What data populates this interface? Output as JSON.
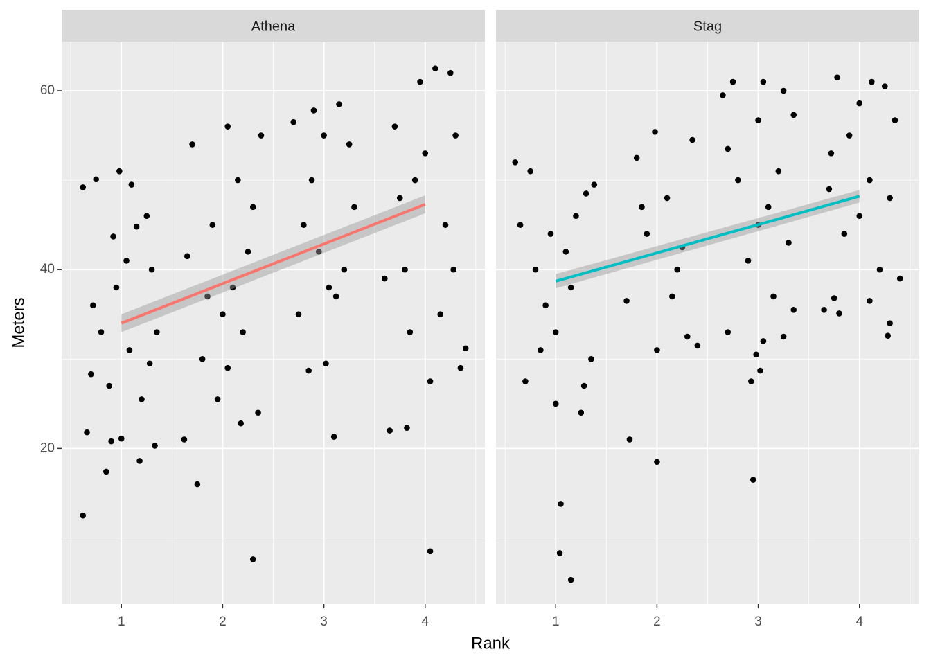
{
  "chart_data": {
    "type": "scatter",
    "xlabel": "Rank",
    "ylabel": "Meters",
    "xlim": [
      0.41,
      4.59
    ],
    "ylim": [
      2.6,
      65.5
    ],
    "xticks": [
      1,
      2,
      3,
      4
    ],
    "yticks": [
      20,
      40,
      60
    ],
    "xminor": [
      0.5,
      1.5,
      2.5,
      3.5,
      4.5
    ],
    "yminor": [
      10,
      30,
      50
    ],
    "grid": true,
    "point_color": "#000000",
    "facets": [
      {
        "title": "Athena",
        "points": [
          [
            0.62,
            12.5
          ],
          [
            0.85,
            17.4
          ],
          [
            1.18,
            18.6
          ],
          [
            0.9,
            20.8
          ],
          [
            1.33,
            20.3
          ],
          [
            0.66,
            21.8
          ],
          [
            1.0,
            21.1
          ],
          [
            0.7,
            28.3
          ],
          [
            0.8,
            33
          ],
          [
            0.95,
            38
          ],
          [
            1.05,
            41
          ],
          [
            1.15,
            44.8
          ],
          [
            1.25,
            46
          ],
          [
            0.62,
            49.2
          ],
          [
            0.75,
            50.1
          ],
          [
            0.98,
            51
          ],
          [
            1.1,
            49.5
          ],
          [
            1.3,
            40
          ],
          [
            1.35,
            33
          ],
          [
            0.88,
            27
          ],
          [
            1.2,
            25.5
          ],
          [
            1.08,
            31
          ],
          [
            0.72,
            36
          ],
          [
            1.28,
            29.5
          ],
          [
            0.92,
            43.7
          ],
          [
            1.75,
            16
          ],
          [
            2.3,
            7.6
          ],
          [
            1.62,
            21
          ],
          [
            2.18,
            22.8
          ],
          [
            2.35,
            24
          ],
          [
            1.7,
            54
          ],
          [
            2.05,
            56
          ],
          [
            2.38,
            55
          ],
          [
            1.9,
            45
          ],
          [
            2.1,
            38
          ],
          [
            2.25,
            42
          ],
          [
            1.8,
            30
          ],
          [
            2.0,
            35
          ],
          [
            1.65,
            41.5
          ],
          [
            2.3,
            47
          ],
          [
            1.95,
            25.5
          ],
          [
            2.2,
            33
          ],
          [
            2.15,
            50
          ],
          [
            1.85,
            37
          ],
          [
            2.05,
            29
          ],
          [
            3.1,
            21.3
          ],
          [
            2.85,
            28.7
          ],
          [
            3.02,
            29.5
          ],
          [
            3.15,
            58.5
          ],
          [
            2.9,
            57.8
          ],
          [
            2.7,
            56.5
          ],
          [
            3.0,
            55
          ],
          [
            2.8,
            45
          ],
          [
            3.2,
            40
          ],
          [
            3.05,
            38
          ],
          [
            2.95,
            42
          ],
          [
            3.3,
            47
          ],
          [
            2.75,
            35
          ],
          [
            3.25,
            54
          ],
          [
            2.88,
            50
          ],
          [
            3.12,
            37
          ],
          [
            4.05,
            8.5
          ],
          [
            3.65,
            22
          ],
          [
            3.82,
            22.3
          ],
          [
            4.05,
            27.5
          ],
          [
            3.95,
            61
          ],
          [
            4.1,
            62.5
          ],
          [
            4.25,
            62
          ],
          [
            4.3,
            55
          ],
          [
            3.7,
            56
          ],
          [
            3.9,
            50
          ],
          [
            4.2,
            45
          ],
          [
            3.8,
            40
          ],
          [
            4.4,
            31.2
          ],
          [
            3.6,
            39
          ],
          [
            4.15,
            35
          ],
          [
            4.35,
            29
          ],
          [
            4.0,
            53
          ],
          [
            3.75,
            48
          ],
          [
            4.28,
            40
          ],
          [
            3.85,
            33
          ]
        ],
        "fit": {
          "color": "#f8766d",
          "x": [
            1,
            4
          ],
          "y": [
            34,
            47.3
          ],
          "lower": [
            33,
            46.3
          ],
          "upper": [
            35,
            48.3
          ]
        }
      },
      {
        "title": "Stag",
        "points": [
          [
            1.05,
            13.8
          ],
          [
            1.04,
            8.3
          ],
          [
            1.15,
            5.3
          ],
          [
            1.25,
            24
          ],
          [
            1.0,
            25
          ],
          [
            0.7,
            27.5
          ],
          [
            0.6,
            52
          ],
          [
            0.75,
            51
          ],
          [
            0.65,
            45
          ],
          [
            0.8,
            40
          ],
          [
            0.9,
            36
          ],
          [
            1.1,
            42
          ],
          [
            1.2,
            46
          ],
          [
            1.3,
            48.5
          ],
          [
            1.38,
            49.5
          ],
          [
            1.35,
            30
          ],
          [
            1.0,
            33
          ],
          [
            0.85,
            31
          ],
          [
            1.15,
            38
          ],
          [
            0.95,
            44
          ],
          [
            1.28,
            27
          ],
          [
            1.73,
            21
          ],
          [
            2.0,
            18.5
          ],
          [
            1.98,
            55.4
          ],
          [
            2.35,
            54.5
          ],
          [
            1.8,
            52.5
          ],
          [
            2.1,
            48
          ],
          [
            1.9,
            44
          ],
          [
            2.2,
            40
          ],
          [
            1.7,
            36.5
          ],
          [
            2.0,
            31
          ],
          [
            2.3,
            32.5
          ],
          [
            2.4,
            31.5
          ],
          [
            1.85,
            47
          ],
          [
            2.15,
            37
          ],
          [
            2.25,
            42.5
          ],
          [
            2.95,
            16.5
          ],
          [
            2.93,
            27.5
          ],
          [
            3.02,
            28.7
          ],
          [
            2.98,
            30.5
          ],
          [
            2.65,
            59.5
          ],
          [
            2.75,
            61
          ],
          [
            3.05,
            61
          ],
          [
            3.25,
            60
          ],
          [
            3.35,
            57.3
          ],
          [
            3.0,
            56.7
          ],
          [
            2.7,
            53.5
          ],
          [
            3.2,
            51
          ],
          [
            2.8,
            50
          ],
          [
            3.1,
            47
          ],
          [
            3.0,
            45
          ],
          [
            3.3,
            43
          ],
          [
            2.9,
            41
          ],
          [
            3.15,
            37
          ],
          [
            2.7,
            33
          ],
          [
            3.35,
            35.5
          ],
          [
            3.25,
            32.5
          ],
          [
            3.05,
            32
          ],
          [
            3.65,
            35.5
          ],
          [
            3.8,
            35.1
          ],
          [
            3.75,
            36.8
          ],
          [
            3.78,
            61.5
          ],
          [
            4.12,
            61
          ],
          [
            4.25,
            60.5
          ],
          [
            4.0,
            58.6
          ],
          [
            4.35,
            56.7
          ],
          [
            3.9,
            55
          ],
          [
            4.1,
            50
          ],
          [
            3.7,
            49
          ],
          [
            4.3,
            48
          ],
          [
            4.0,
            46
          ],
          [
            3.85,
            44
          ],
          [
            4.2,
            40
          ],
          [
            3.72,
            53
          ],
          [
            4.4,
            39
          ],
          [
            4.1,
            36.5
          ],
          [
            4.3,
            34
          ],
          [
            4.28,
            32.6
          ]
        ],
        "fit": {
          "color": "#00bfc4",
          "x": [
            1,
            4
          ],
          "y": [
            38.7,
            48.2
          ],
          "lower": [
            37.9,
            47.5
          ],
          "upper": [
            39.5,
            48.9
          ]
        }
      }
    ]
  }
}
